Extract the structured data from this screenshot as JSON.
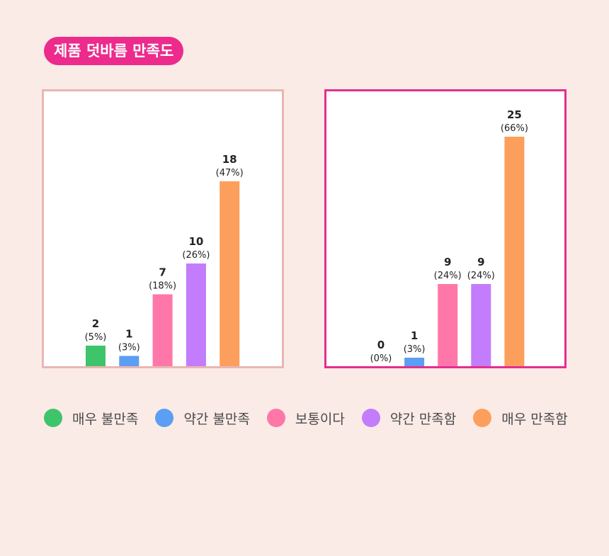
{
  "title": "제품 덧바름 만족도",
  "chart_data": [
    {
      "type": "bar",
      "categories": [
        "매우 불만족",
        "약간 불만족",
        "보통이다",
        "약간 만족함",
        "매우 만족함"
      ],
      "values": [
        2,
        1,
        7,
        10,
        18
      ],
      "percents": [
        "(5%)",
        "(3%)",
        "(18%)",
        "(26%)",
        "(47%)"
      ],
      "colors": [
        "#3ec46b",
        "#5b9ef3",
        "#fe77a8",
        "#c37cfb",
        "#fd9f5c"
      ],
      "highlighted": false,
      "grid": false
    },
    {
      "type": "bar",
      "categories": [
        "매우 불만족",
        "약간 불만족",
        "보통이다",
        "약간 만족함",
        "매우 만족함"
      ],
      "values": [
        0,
        1,
        9,
        9,
        25
      ],
      "percents": [
        "(0%)",
        "(3%)",
        "(24%)",
        "(24%)",
        "(66%)"
      ],
      "colors": [
        "#3ec46b",
        "#5b9ef3",
        "#fe77a8",
        "#c37cfb",
        "#fd9f5c"
      ],
      "highlighted": true,
      "grid": false
    }
  ],
  "legend": {
    "placement": "bottom",
    "items": [
      {
        "label": "매우 불만족",
        "color": "#3ec46b"
      },
      {
        "label": "약간 불만족",
        "color": "#5b9ef3"
      },
      {
        "label": "보통이다",
        "color": "#fe77a8"
      },
      {
        "label": "약간 만족함",
        "color": "#c37cfb"
      },
      {
        "label": "매우 만족함",
        "color": "#fd9f5c"
      }
    ]
  }
}
